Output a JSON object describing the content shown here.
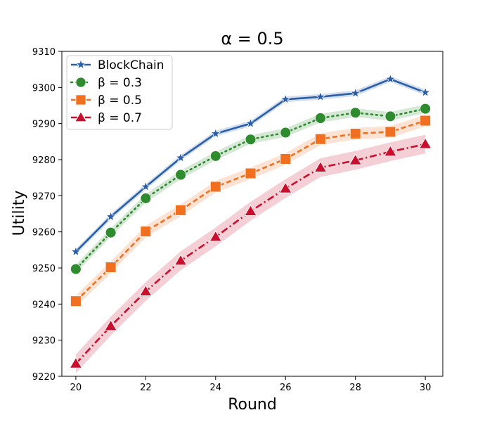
{
  "chart_data": {
    "type": "line",
    "title": "α = 0.5",
    "xlabel": "Round",
    "ylabel": "Utility",
    "xlim": [
      19.6,
      30.5
    ],
    "ylim": [
      9220,
      9310
    ],
    "xticks": [
      20,
      22,
      24,
      26,
      28,
      30
    ],
    "yticks": [
      9220,
      9230,
      9240,
      9250,
      9260,
      9270,
      9280,
      9290,
      9300,
      9310
    ],
    "legend_position": "top-left",
    "x": [
      20,
      21,
      22,
      23,
      24,
      25,
      26,
      27,
      28,
      29,
      30
    ],
    "series": [
      {
        "name": "BlockChain",
        "color": "#2a5ea8",
        "linestyle": "solid",
        "marker": "star",
        "values": [
          9254.5,
          9264.2,
          9272.5,
          9280.5,
          9287.2,
          9290.0,
          9296.7,
          9297.4,
          9298.4,
          9302.3,
          9298.6
        ],
        "band": 0.8
      },
      {
        "name": "β = 0.3",
        "color": "#2e8b2e",
        "linestyle": "dotted",
        "marker": "circle",
        "values": [
          9249.7,
          9259.8,
          9269.3,
          9275.8,
          9281.0,
          9285.6,
          9287.5,
          9291.5,
          9293.0,
          9292.0,
          9294.1
        ],
        "band": 1.2
      },
      {
        "name": "β = 0.5",
        "color": "#f07020",
        "linestyle": "dashed",
        "marker": "square",
        "values": [
          9240.8,
          9250.2,
          9260.1,
          9266.0,
          9272.5,
          9276.2,
          9280.2,
          9285.7,
          9287.2,
          9287.7,
          9290.8
        ],
        "band": 1.6
      },
      {
        "name": "β = 0.7",
        "color": "#c8102e",
        "linestyle": "dashdot",
        "marker": "triangle",
        "values": [
          9223.5,
          9233.9,
          9243.5,
          9252.0,
          9258.6,
          9265.7,
          9272.0,
          9277.8,
          9279.8,
          9282.2,
          9284.3
        ],
        "band": 2.6
      }
    ]
  }
}
